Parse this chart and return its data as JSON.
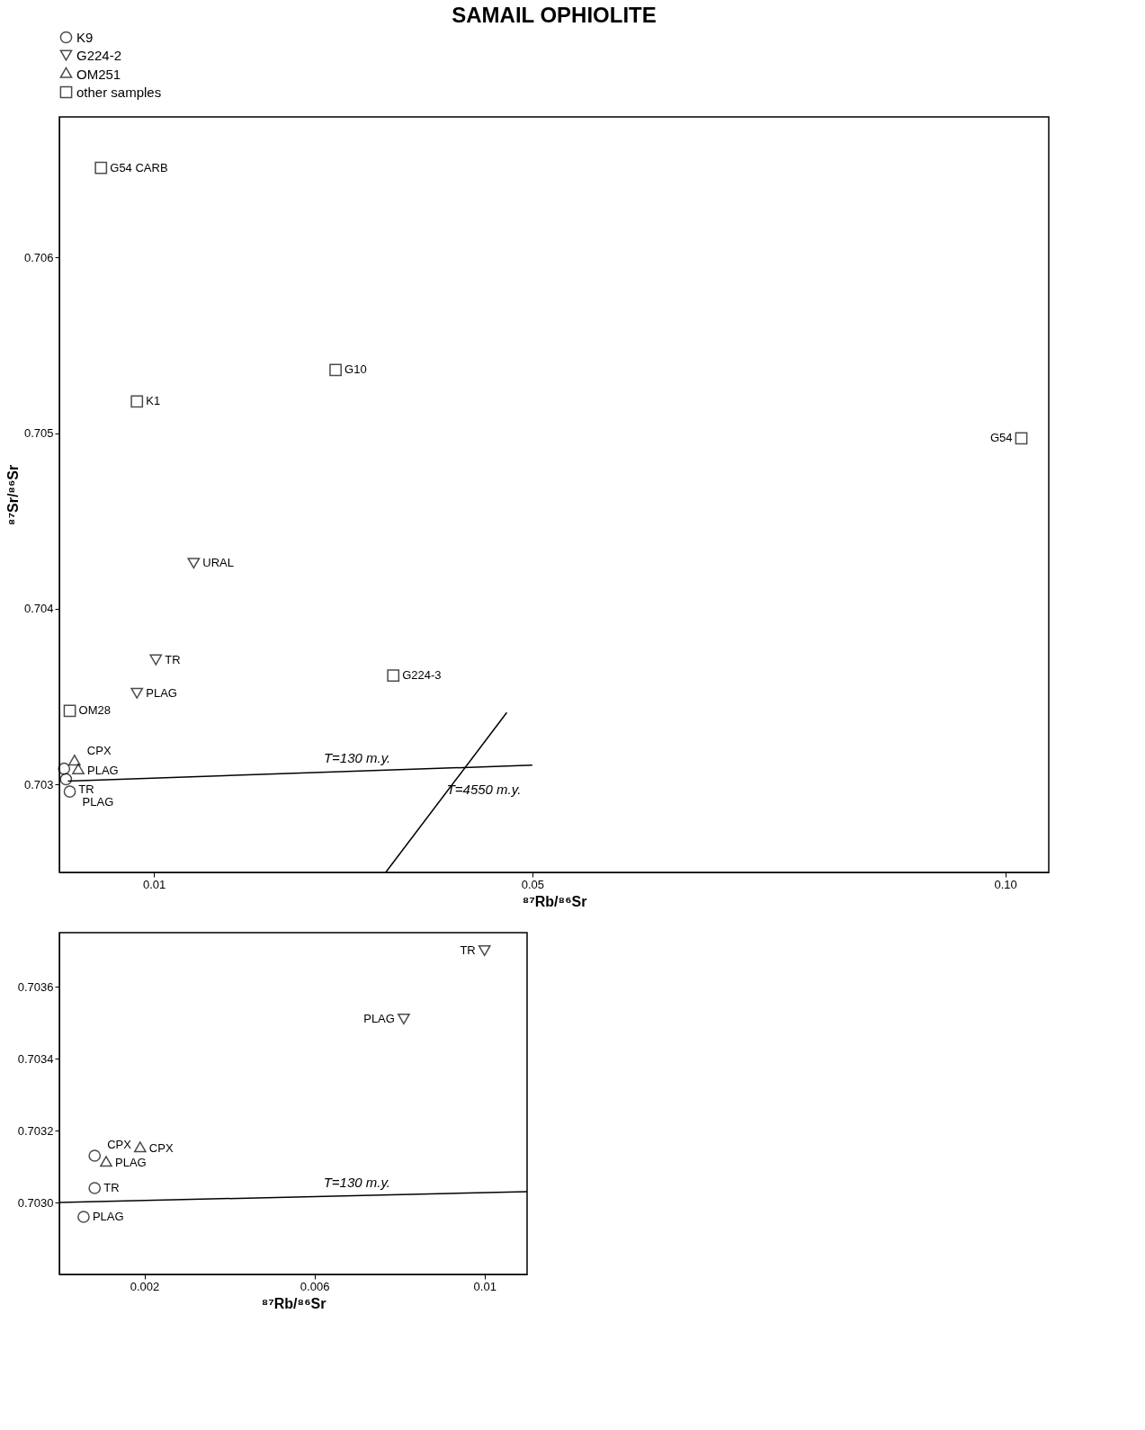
{
  "chart_data": [
    {
      "type": "scatter",
      "title": "SAMAIL OPHIOLITE",
      "xlabel": "⁸⁷Rb/⁸⁶Sr",
      "ylabel": "⁸⁷Sr/⁸⁶Sr",
      "xlim": [
        0,
        0.1046
      ],
      "xticks": [
        0.01,
        0.05,
        {
          "value": 0.1,
          "label": "0.10"
        }
      ],
      "ylim": [
        0.7025,
        0.7068
      ],
      "yticks": [
        0.703,
        0.704,
        0.705,
        0.706
      ],
      "grid": false,
      "legend": "top",
      "series": [
        {
          "name": "K9",
          "marker": "circle",
          "color": "#000000",
          "x": [
            0.0005,
            0.0007,
            0.0011
          ],
          "values": [
            0.70309,
            0.70303,
            0.70296
          ],
          "value_labels": [
            null,
            "TR",
            "PLAG"
          ]
        },
        {
          "name": "G224-2",
          "marker": "triangle-down",
          "color": "#000000",
          "x": [
            0.0142,
            0.0102,
            0.0082
          ],
          "values": [
            0.70426,
            0.70371,
            0.70352
          ],
          "value_labels": [
            "URAL",
            "TR",
            "PLAG"
          ]
        },
        {
          "name": "OM251",
          "marker": "triangle",
          "color": "#000000",
          "x": [
            0.0016,
            0.002
          ],
          "values": [
            0.70313,
            0.70308
          ],
          "value_labels": [
            "CPX",
            "PLAG"
          ]
        },
        {
          "name": "other samples",
          "marker": "square",
          "color": "#000000",
          "x": [
            0.0044,
            0.0082,
            0.0292,
            0.0353,
            0.0011,
            0.1017
          ],
          "values": [
            0.70651,
            0.70518,
            0.70536,
            0.70362,
            0.70342,
            0.70497
          ],
          "value_labels": [
            "G54 CARB",
            "K1",
            "G10",
            "G224-3",
            "OM28",
            "G54"
          ]
        },
        {
          "type": "line",
          "color": "#000000",
          "line_style": "solid",
          "x": [
            0.0009,
            0.05
          ],
          "values": [
            0.70302,
            0.70311
          ]
        },
        {
          "type": "line",
          "color": "#000000",
          "line_style": "solid",
          "x": [
            0.0345,
            0.0473
          ],
          "values": [
            0.7025,
            0.70341
          ]
        }
      ],
      "annotations": [
        {
          "text": "T=130 m.y.",
          "x": 0.027,
          "y": 0.70307
        },
        {
          "text": "T=4550 m.y.",
          "x": 0.04,
          "y": 0.70289
        }
      ]
    },
    {
      "type": "scatter",
      "xlabel": "⁸⁷Rb/⁸⁶Sr",
      "xlim": [
        0,
        0.011
      ],
      "xticks": [
        0.002,
        0.006,
        {
          "value": 0.01,
          "label": "0.01"
        }
      ],
      "ylim": [
        0.7028,
        0.70375
      ],
      "yticks": [
        {
          "value": 0.703,
          "label": "0.7030"
        },
        0.7032,
        0.7034,
        0.7036
      ],
      "grid": false,
      "legend": false,
      "series": [
        {
          "marker": "circle",
          "color": "#000000",
          "x": [
            0.00083,
            0.00083,
            0.00057
          ],
          "values": [
            0.70313,
            0.70304,
            0.70296
          ],
          "value_labels": [
            "CPX",
            "TR",
            "PLAG"
          ]
        },
        {
          "marker": "triangle",
          "color": "#000000",
          "x": [
            0.0019,
            0.0011
          ],
          "values": [
            0.70315,
            0.70311
          ],
          "value_labels": [
            "CPX",
            "PLAG"
          ]
        },
        {
          "marker": "triangle-down",
          "color": "#000000",
          "x": [
            0.0081,
            0.01
          ],
          "values": [
            0.70351,
            0.7037
          ],
          "value_labels": [
            "PLAG",
            "TR"
          ]
        },
        {
          "type": "line",
          "color": "#000000",
          "line_style": "solid",
          "x": [
            0,
            0.011
          ],
          "values": [
            0.703,
            0.70303
          ]
        }
      ],
      "annotations": [
        {
          "text": "T=130 m.y.",
          "x": 0.006,
          "y": 0.703016
        }
      ]
    }
  ]
}
